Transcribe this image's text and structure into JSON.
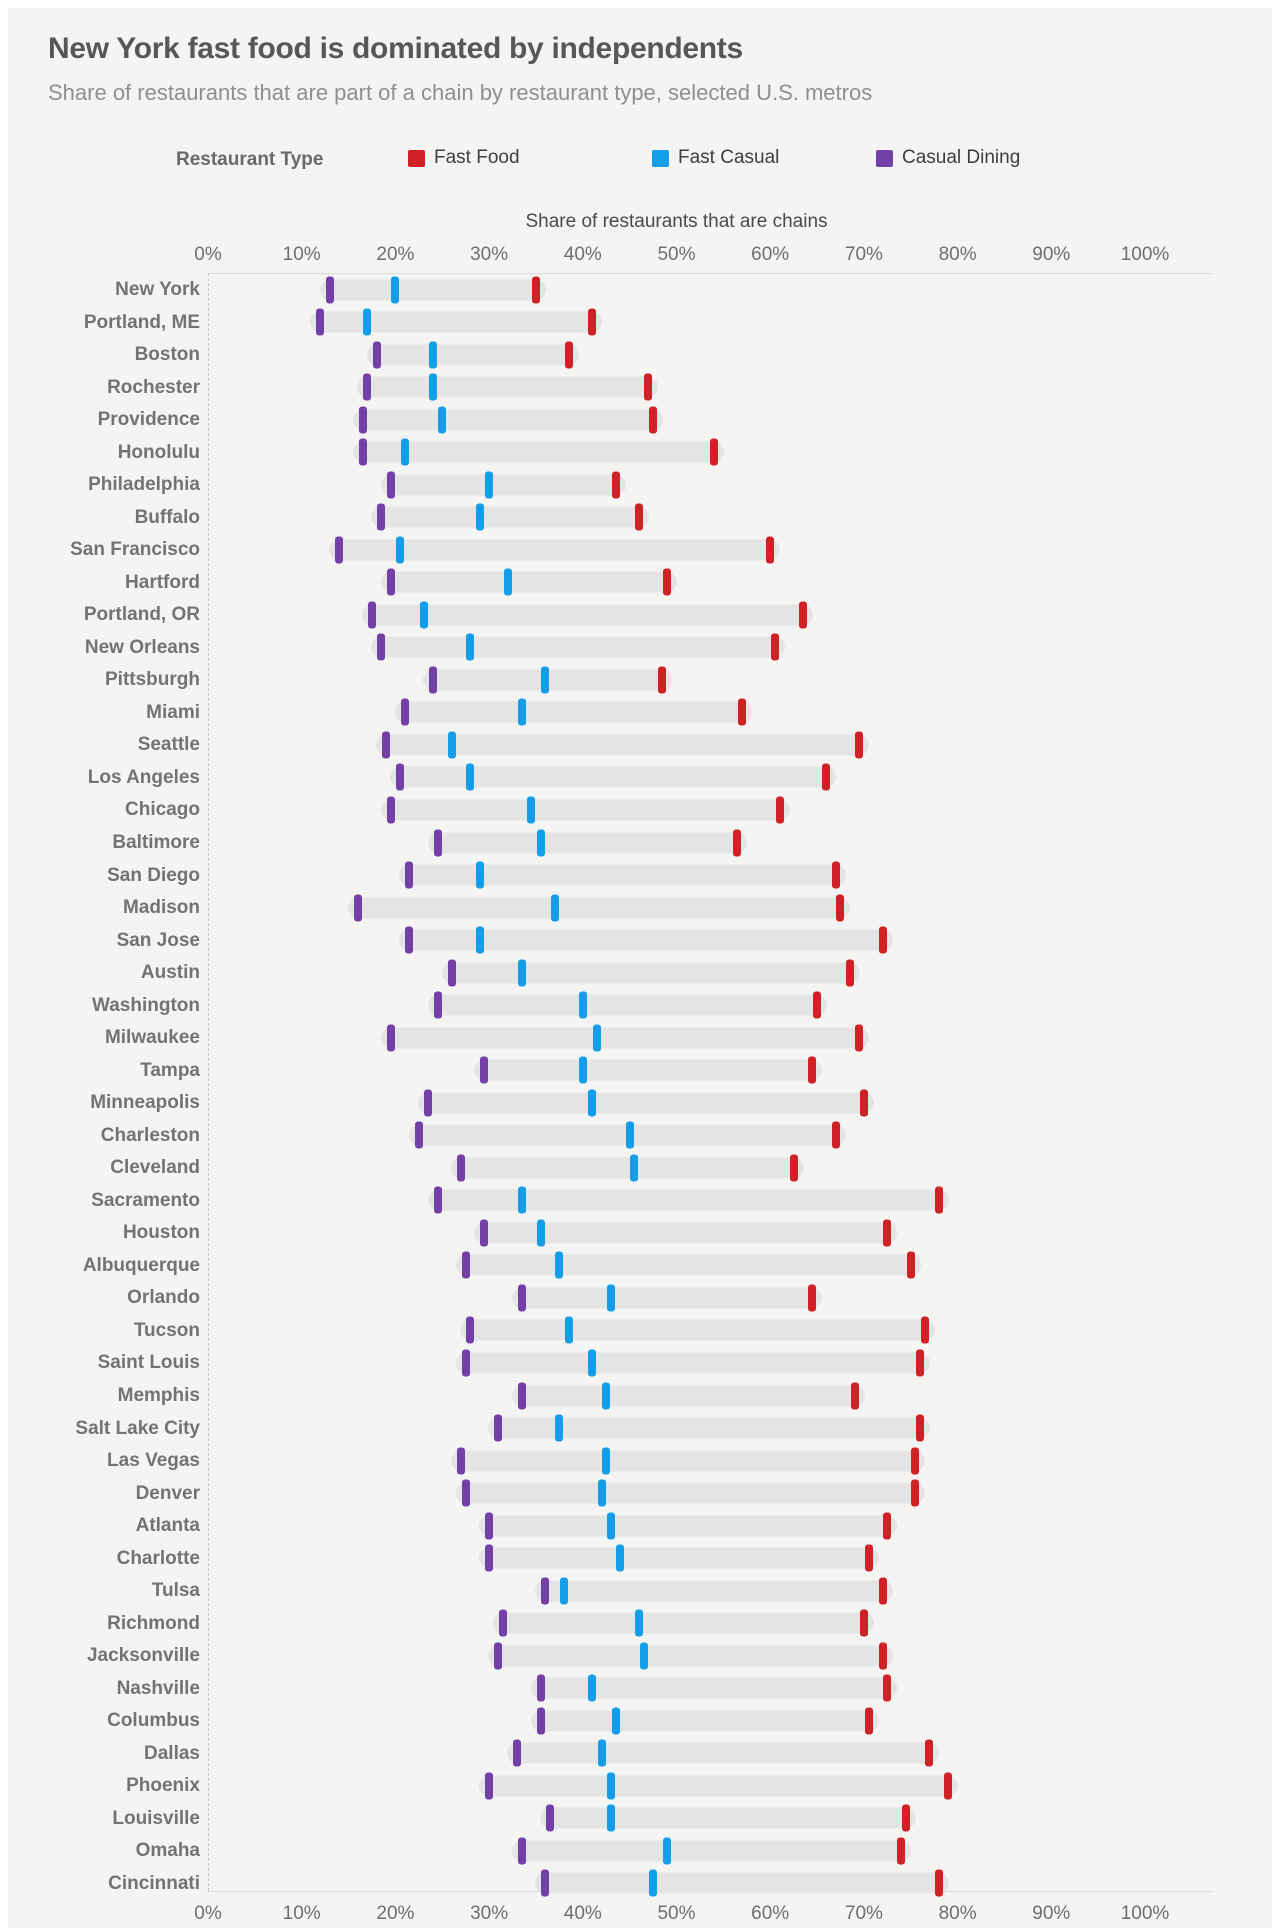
{
  "title": "New York fast food is dominated by independents",
  "subtitle": "Share of restaurants that are part of a chain by restaurant type, selected U.S. metros",
  "legend": {
    "label": "Restaurant Type",
    "items": [
      {
        "label": "Fast Food",
        "color": "#cf2226"
      },
      {
        "label": "Fast Casual",
        "color": "#149de8"
      },
      {
        "label": "Casual Dining",
        "color": "#7340a8"
      }
    ]
  },
  "colors": {
    "card_bg": "#f4f4f2",
    "track": "#e4e4e4",
    "fast_food": "#cf2226",
    "fast_casual": "#149de8",
    "casual_dining": "#7340a8"
  },
  "chart_data": {
    "type": "scatter",
    "variant": "dumbbell-range",
    "title": "New York fast food is dominated by independents",
    "subtitle": "Share of restaurants that are part of a chain by restaurant type, selected U.S. metros",
    "xlabel": "Share of restaurants that are chains",
    "ylabel": "",
    "xlim": [
      0,
      100
    ],
    "grid": false,
    "legend_position": "top",
    "x_ticks": [
      "0%",
      "10%",
      "20%",
      "30%",
      "40%",
      "50%",
      "60%",
      "70%",
      "80%",
      "90%",
      "100%"
    ],
    "categories": [
      "New York",
      "Portland, ME",
      "Boston",
      "Rochester",
      "Providence",
      "Honolulu",
      "Philadelphia",
      "Buffalo",
      "San Francisco",
      "Hartford",
      "Portland, OR",
      "New Orleans",
      "Pittsburgh",
      "Miami",
      "Seattle",
      "Los Angeles",
      "Chicago",
      "Baltimore",
      "San Diego",
      "Madison",
      "San Jose",
      "Austin",
      "Washington",
      "Milwaukee",
      "Tampa",
      "Minneapolis",
      "Charleston",
      "Cleveland",
      "Sacramento",
      "Houston",
      "Albuquerque",
      "Orlando",
      "Tucson",
      "Saint Louis",
      "Memphis",
      "Salt Lake City",
      "Las Vegas",
      "Denver",
      "Atlanta",
      "Charlotte",
      "Tulsa",
      "Richmond",
      "Jacksonville",
      "Nashville",
      "Columbus",
      "Dallas",
      "Phoenix",
      "Louisville",
      "Omaha",
      "Cincinnati"
    ],
    "series": [
      {
        "name": "Fast Food",
        "color": "#cf2226",
        "values": [
          35,
          41,
          38.5,
          47,
          47.5,
          54,
          43.5,
          46,
          60,
          49,
          63.5,
          60.5,
          48.5,
          57,
          69.5,
          66,
          61,
          56.5,
          67,
          67.5,
          72,
          68.5,
          65,
          69.5,
          64.5,
          70,
          67,
          62.5,
          78,
          72.5,
          75,
          64.5,
          76.5,
          76,
          69,
          76,
          75.5,
          75.5,
          72.5,
          70.5,
          72,
          70,
          72,
          72.5,
          70.5,
          77,
          79,
          74.5,
          74,
          78
        ]
      },
      {
        "name": "Fast Casual",
        "color": "#149de8",
        "values": [
          20,
          17,
          24,
          24,
          25,
          21,
          30,
          29,
          20.5,
          32,
          23,
          28,
          36,
          33.5,
          26,
          28,
          34.5,
          35.5,
          29,
          37,
          29,
          33.5,
          40,
          41.5,
          40,
          41,
          45,
          45.5,
          33.5,
          35.5,
          37.5,
          43,
          38.5,
          41,
          42.5,
          37.5,
          42.5,
          42,
          43,
          44,
          38,
          46,
          46.5,
          41,
          43.5,
          42,
          43,
          43,
          49,
          47.5
        ]
      },
      {
        "name": "Casual Dining",
        "color": "#7340a8",
        "values": [
          13,
          12,
          18,
          17,
          16.5,
          16.5,
          19.5,
          18.5,
          14,
          19.5,
          17.5,
          18.5,
          24,
          21,
          19,
          20.5,
          19.5,
          24.5,
          21.5,
          16,
          21.5,
          26,
          24.5,
          19.5,
          29.5,
          23.5,
          22.5,
          27,
          24.5,
          29.5,
          27.5,
          33.5,
          28,
          27.5,
          33.5,
          31,
          27,
          27.5,
          30,
          30,
          36,
          31.5,
          31,
          35.5,
          35.5,
          33,
          30,
          36.5,
          33.5,
          36
        ]
      }
    ]
  }
}
